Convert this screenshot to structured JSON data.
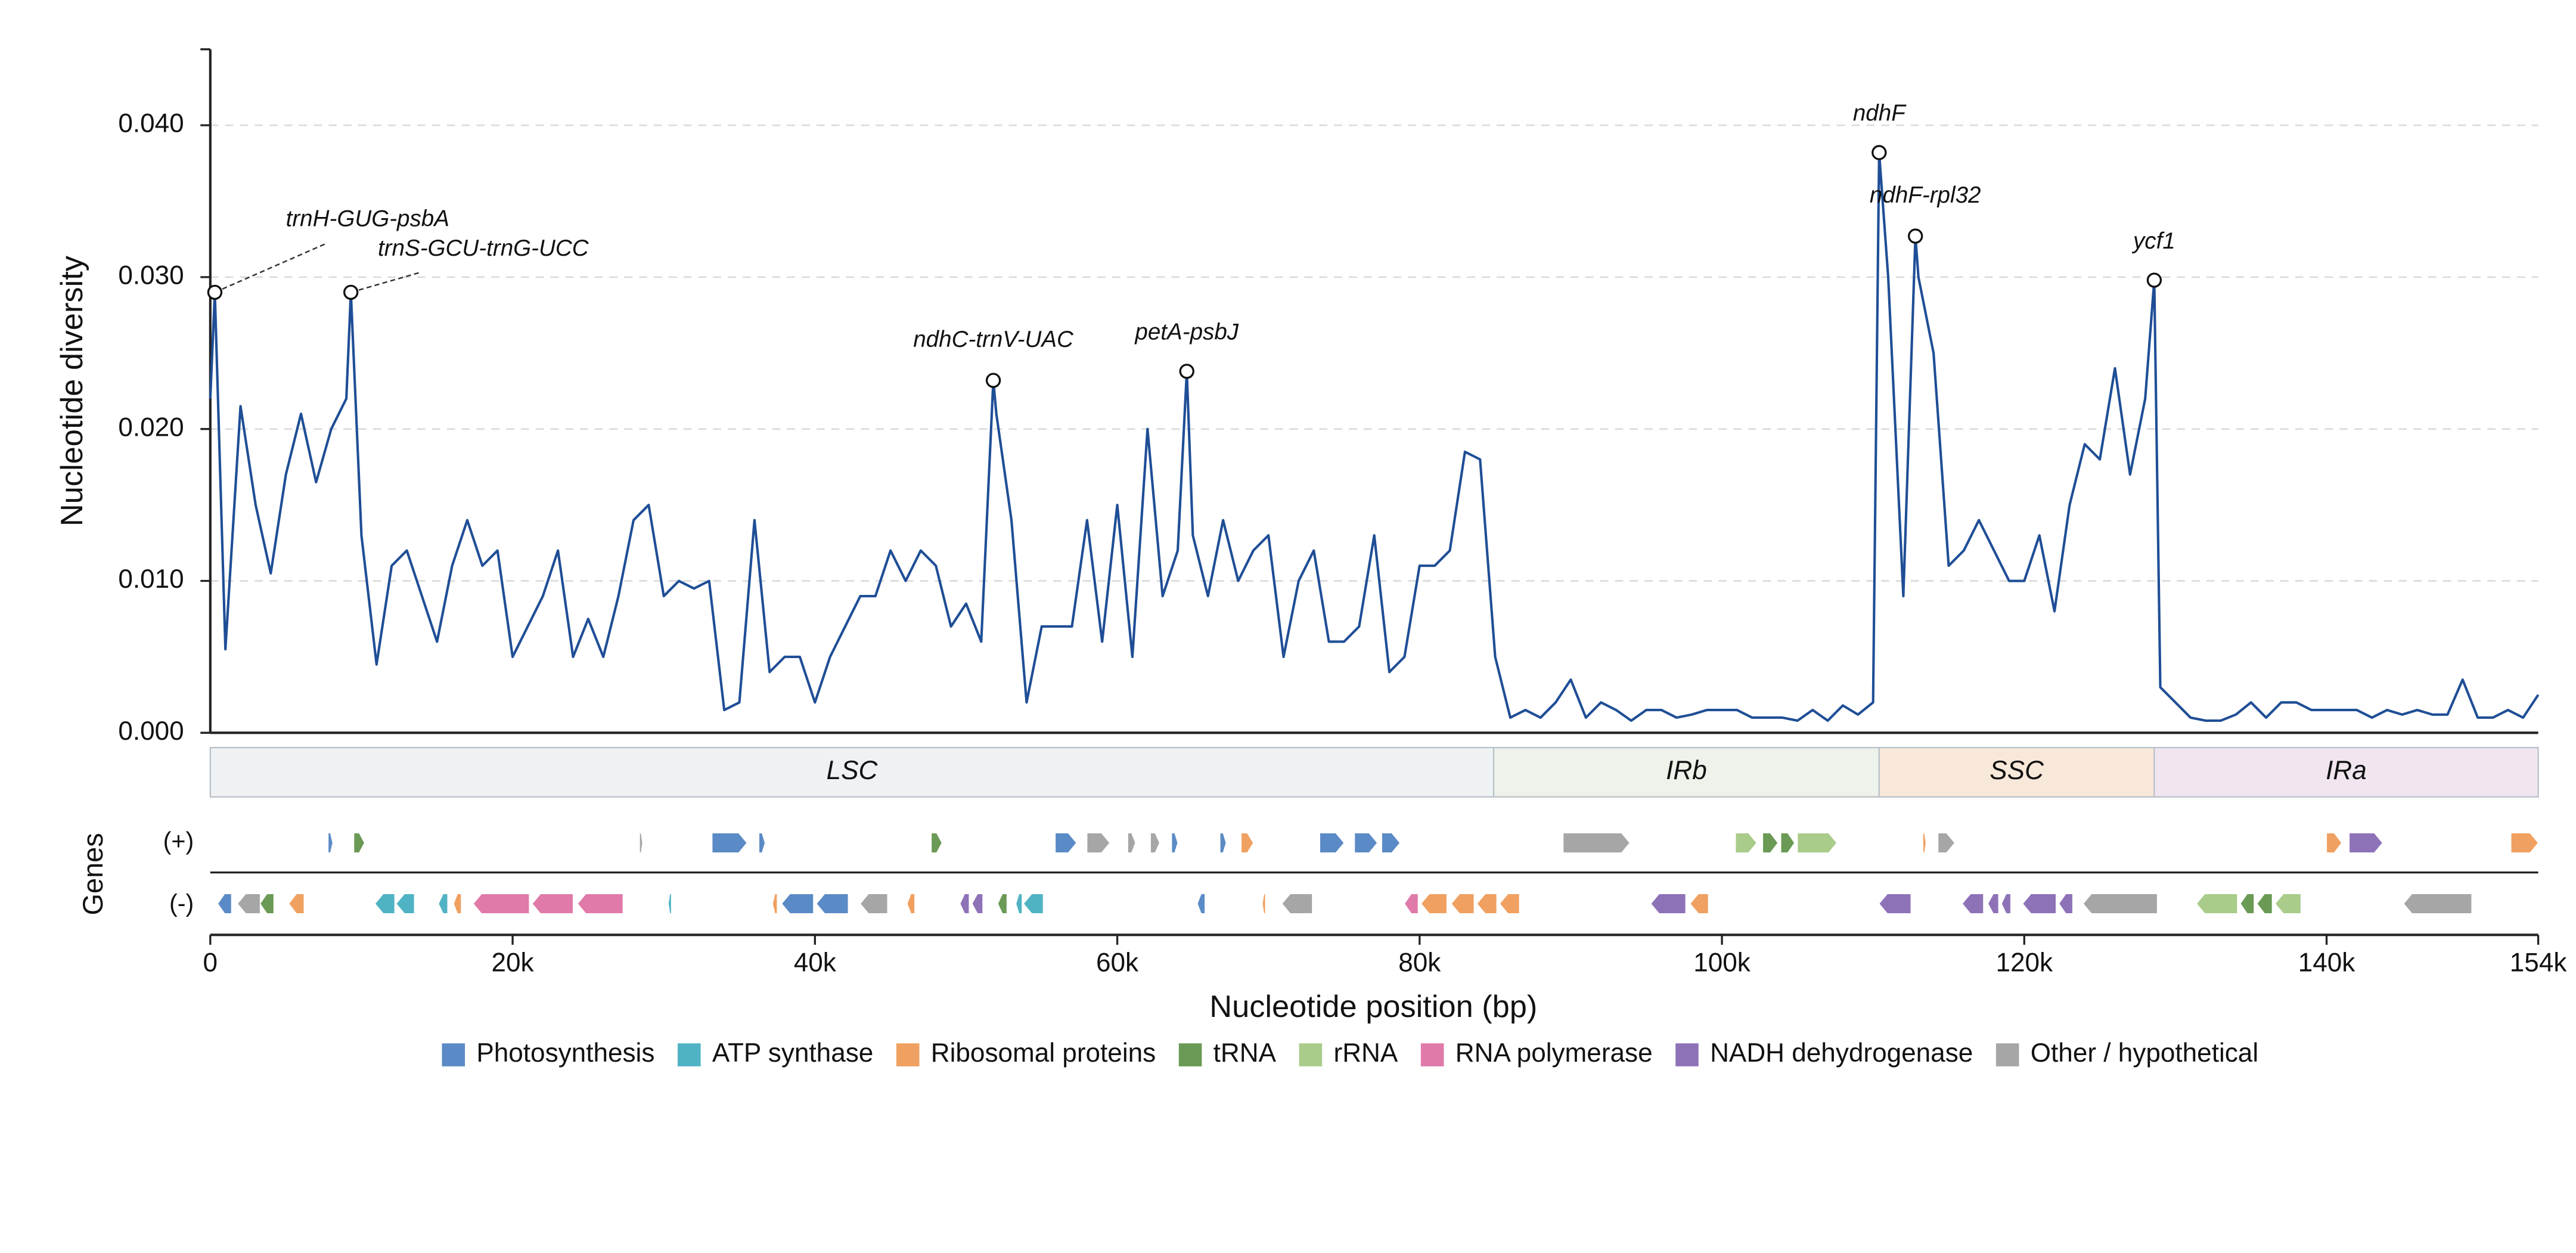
{
  "chart_data": {
    "type": "line",
    "ylabel": "Nucleotide diversity",
    "xlabel": "Nucleotide position (bp)",
    "tracks_label": "Genes",
    "strand_labels": [
      "(+)",
      "(-)"
    ],
    "xlim": [
      0,
      154000
    ],
    "ylim": [
      0,
      0.045
    ],
    "xticks": [
      0,
      {
        "value": 20000,
        "label": "20k"
      },
      {
        "value": 40000,
        "label": "40k"
      },
      {
        "value": 60000,
        "label": "60k"
      },
      {
        "value": 80000,
        "label": "80k"
      },
      {
        "value": 100000,
        "label": "100k"
      },
      {
        "value": 120000,
        "label": "120k"
      },
      {
        "value": 140000,
        "label": "140k"
      },
      {
        "value": 154000,
        "label": "154k"
      }
    ],
    "yticks": [
      {
        "value": 0,
        "label": "0.000"
      },
      {
        "value": 0.01,
        "label": "0.010"
      },
      {
        "value": 0.02,
        "label": "0.020"
      },
      {
        "value": 0.03,
        "label": "0.030"
      },
      {
        "value": 0.04,
        "label": "0.040"
      }
    ],
    "grid": true,
    "series": [
      {
        "name": "Nucleotide diversity",
        "color": "#1f4e96",
        "x": [
          0,
          300,
          1000,
          2000,
          3000,
          4000,
          5000,
          6000,
          7000,
          8000,
          9000,
          9300,
          10000,
          11000,
          12000,
          13000,
          14000,
          15000,
          16000,
          17000,
          18000,
          19000,
          20000,
          21000,
          22000,
          23000,
          24000,
          25000,
          26000,
          27000,
          28000,
          29000,
          30000,
          31000,
          32000,
          33000,
          34000,
          35000,
          36000,
          37000,
          38000,
          39000,
          40000,
          41000,
          42000,
          43000,
          44000,
          45000,
          46000,
          47000,
          48000,
          49000,
          50000,
          51000,
          51800,
          52000,
          53000,
          54000,
          55000,
          56000,
          57000,
          58000,
          59000,
          60000,
          61000,
          62000,
          63000,
          64000,
          64600,
          65000,
          66000,
          67000,
          68000,
          69000,
          70000,
          71000,
          72000,
          73000,
          74000,
          75000,
          76000,
          77000,
          78000,
          79000,
          80000,
          81000,
          82000,
          83000,
          84000,
          85000,
          86000,
          87000,
          88000,
          89000,
          90000,
          91000,
          92000,
          93000,
          94000,
          95000,
          96000,
          97000,
          98000,
          99000,
          100000,
          101000,
          102000,
          103000,
          104000,
          105000,
          106000,
          107000,
          108000,
          109000,
          110000,
          110400,
          111000,
          112000,
          112800,
          113000,
          114000,
          115000,
          116000,
          117000,
          118000,
          119000,
          120000,
          121000,
          122000,
          123000,
          124000,
          125000,
          126000,
          127000,
          128000,
          128600,
          129000,
          130000,
          131000,
          132000,
          133000,
          134000,
          135000,
          136000,
          137000,
          138000,
          139000,
          140000,
          141000,
          142000,
          143000,
          144000,
          145000,
          146000,
          147000,
          148000,
          149000,
          150000,
          151000,
          152000,
          153000,
          154000
        ],
        "values": [
          0.022,
          0.029,
          0.0055,
          0.0215,
          0.015,
          0.0105,
          0.017,
          0.021,
          0.0165,
          0.02,
          0.022,
          0.029,
          0.013,
          0.0045,
          0.011,
          0.012,
          0.009,
          0.006,
          0.011,
          0.014,
          0.011,
          0.012,
          0.005,
          0.007,
          0.009,
          0.012,
          0.005,
          0.0075,
          0.005,
          0.009,
          0.014,
          0.015,
          0.009,
          0.01,
          0.0095,
          0.01,
          0.0015,
          0.002,
          0.014,
          0.004,
          0.005,
          0.005,
          0.002,
          0.005,
          0.007,
          0.009,
          0.009,
          0.012,
          0.01,
          0.012,
          0.011,
          0.007,
          0.0085,
          0.006,
          0.0232,
          0.021,
          0.014,
          0.002,
          0.007,
          0.007,
          0.007,
          0.014,
          0.006,
          0.015,
          0.005,
          0.02,
          0.009,
          0.012,
          0.0238,
          0.013,
          0.009,
          0.014,
          0.01,
          0.012,
          0.013,
          0.005,
          0.01,
          0.012,
          0.006,
          0.006,
          0.007,
          0.013,
          0.004,
          0.005,
          0.011,
          0.011,
          0.012,
          0.0185,
          0.018,
          0.005,
          0.001,
          0.0015,
          0.001,
          0.002,
          0.0035,
          0.001,
          0.002,
          0.0015,
          0.0008,
          0.0015,
          0.0015,
          0.001,
          0.0012,
          0.0015,
          0.0015,
          0.0015,
          0.001,
          0.001,
          0.001,
          0.0008,
          0.0015,
          0.0008,
          0.0018,
          0.0012,
          0.002,
          0.0382,
          0.03,
          0.009,
          0.0327,
          0.03,
          0.025,
          0.011,
          0.012,
          0.014,
          0.012,
          0.01,
          0.01,
          0.013,
          0.008,
          0.015,
          0.019,
          0.018,
          0.024,
          0.017,
          0.022,
          0.0298,
          0.003,
          0.002,
          0.001,
          0.0008,
          0.0008,
          0.0012,
          0.002,
          0.001,
          0.002,
          0.002,
          0.0015,
          0.0015,
          0.0015,
          0.0015,
          0.001,
          0.0015,
          0.0012,
          0.0015,
          0.0012,
          0.0012,
          0.0035,
          0.001,
          0.001,
          0.0015,
          0.001,
          0.0025
        ]
      }
    ],
    "annotations": [
      {
        "text": "trnH-GUG-psbA",
        "x": 300,
        "y": 0.029
      },
      {
        "text": "trnS-GCU-trnG-UCC",
        "x": 9300,
        "y": 0.029
      },
      {
        "text": "ndhC-trnV-UAC",
        "x": 51800,
        "y": 0.0232
      },
      {
        "text": "petA-psbJ",
        "x": 64600,
        "y": 0.0238
      },
      {
        "text": "ndhF",
        "x": 110400,
        "y": 0.0382
      },
      {
        "text": "ndhF-rpl32",
        "x": 112800,
        "y": 0.0327
      },
      {
        "text": "ycf1",
        "x": 128600,
        "y": 0.0298
      }
    ],
    "regions": [
      {
        "name": "LSC",
        "start": 0,
        "end": 84900,
        "color": "#eef2f5"
      },
      {
        "name": "IRb",
        "start": 84900,
        "end": 110400,
        "color": "#edf3ea"
      },
      {
        "name": "SSC",
        "start": 110400,
        "end": 128600,
        "color": "#f8e8da"
      },
      {
        "name": "IRa",
        "start": 128600,
        "end": 154000,
        "color": "#f1e6f0"
      }
    ],
    "categories": [
      {
        "name": "Photosynthesis",
        "color": "#5b8bc6"
      },
      {
        "name": "ATP synthase",
        "color": "#4fb3c4"
      },
      {
        "name": "Ribosomal proteins",
        "color": "#f0a060"
      },
      {
        "name": "tRNA",
        "color": "#6a9a55"
      },
      {
        "name": "rRNA",
        "color": "#a9cc8a"
      },
      {
        "name": "RNA polymerase",
        "color": "#e07aa8"
      },
      {
        "name": "NADH dehydrogenase",
        "color": "#8e72b8"
      },
      {
        "name": "Other / hypothetical",
        "color": "#a6a6a6"
      }
    ],
    "genes": [
      {
        "strand": "+",
        "start": 7800,
        "end": 8100,
        "category": "Photosynthesis"
      },
      {
        "strand": "+",
        "start": 9500,
        "end": 10200,
        "category": "tRNA"
      },
      {
        "strand": "+",
        "start": 28400,
        "end": 28600,
        "category": "Other / hypothetical"
      },
      {
        "strand": "+",
        "start": 33200,
        "end": 35500,
        "category": "Photosynthesis"
      },
      {
        "strand": "+",
        "start": 36300,
        "end": 36700,
        "category": "Photosynthesis"
      },
      {
        "strand": "+",
        "start": 47700,
        "end": 48400,
        "category": "tRNA"
      },
      {
        "strand": "+",
        "start": 55900,
        "end": 57300,
        "category": "Photosynthesis"
      },
      {
        "strand": "+",
        "start": 58000,
        "end": 59500,
        "category": "Other / hypothetical"
      },
      {
        "strand": "+",
        "start": 60700,
        "end": 61200,
        "category": "Other / hypothetical"
      },
      {
        "strand": "+",
        "start": 62200,
        "end": 62800,
        "category": "Other / hypothetical"
      },
      {
        "strand": "+",
        "start": 63600,
        "end": 64000,
        "category": "Photosynthesis"
      },
      {
        "strand": "+",
        "start": 66800,
        "end": 67200,
        "category": "Photosynthesis"
      },
      {
        "strand": "+",
        "start": 68200,
        "end": 69000,
        "category": "Ribosomal proteins"
      },
      {
        "strand": "+",
        "start": 73400,
        "end": 75000,
        "category": "Photosynthesis"
      },
      {
        "strand": "+",
        "start": 75700,
        "end": 77200,
        "category": "Photosynthesis"
      },
      {
        "strand": "+",
        "start": 77500,
        "end": 78700,
        "category": "Photosynthesis"
      },
      {
        "strand": "+",
        "start": 89500,
        "end": 93900,
        "category": "Other / hypothetical"
      },
      {
        "strand": "+",
        "start": 100900,
        "end": 102300,
        "category": "rRNA"
      },
      {
        "strand": "+",
        "start": 102700,
        "end": 103700,
        "category": "tRNA"
      },
      {
        "strand": "+",
        "start": 103900,
        "end": 104800,
        "category": "tRNA"
      },
      {
        "strand": "+",
        "start": 105000,
        "end": 107600,
        "category": "rRNA"
      },
      {
        "strand": "+",
        "start": 113300,
        "end": 113500,
        "category": "Ribosomal proteins"
      },
      {
        "strand": "+",
        "start": 114300,
        "end": 115400,
        "category": "Other / hypothetical"
      },
      {
        "strand": "+",
        "start": 140000,
        "end": 141000,
        "category": "Ribosomal proteins"
      },
      {
        "strand": "+",
        "start": 141500,
        "end": 143700,
        "category": "NADH dehydrogenase"
      },
      {
        "strand": "+",
        "start": 152200,
        "end": 154000,
        "category": "Ribosomal proteins"
      },
      {
        "strand": "-",
        "start": 500,
        "end": 1400,
        "category": "Photosynthesis"
      },
      {
        "strand": "-",
        "start": 1800,
        "end": 3300,
        "category": "Other / hypothetical"
      },
      {
        "strand": "-",
        "start": 3300,
        "end": 4200,
        "category": "tRNA"
      },
      {
        "strand": "-",
        "start": 5200,
        "end": 6200,
        "category": "Ribosomal proteins"
      },
      {
        "strand": "-",
        "start": 10900,
        "end": 12200,
        "category": "ATP synthase"
      },
      {
        "strand": "-",
        "start": 12300,
        "end": 13500,
        "category": "ATP synthase"
      },
      {
        "strand": "-",
        "start": 15100,
        "end": 15700,
        "category": "ATP synthase"
      },
      {
        "strand": "-",
        "start": 16100,
        "end": 16600,
        "category": "Ribosomal proteins"
      },
      {
        "strand": "-",
        "start": 17400,
        "end": 21100,
        "category": "RNA polymerase"
      },
      {
        "strand": "-",
        "start": 21300,
        "end": 24000,
        "category": "RNA polymerase"
      },
      {
        "strand": "-",
        "start": 24300,
        "end": 27300,
        "category": "RNA polymerase"
      },
      {
        "strand": "-",
        "start": 30300,
        "end": 30500,
        "category": "ATP synthase"
      },
      {
        "strand": "-",
        "start": 37200,
        "end": 37500,
        "category": "Ribosomal proteins"
      },
      {
        "strand": "-",
        "start": 37800,
        "end": 39900,
        "category": "Photosynthesis"
      },
      {
        "strand": "-",
        "start": 40100,
        "end": 42200,
        "category": "Photosynthesis"
      },
      {
        "strand": "-",
        "start": 43000,
        "end": 44800,
        "category": "Other / hypothetical"
      },
      {
        "strand": "-",
        "start": 46100,
        "end": 46600,
        "category": "Ribosomal proteins"
      },
      {
        "strand": "-",
        "start": 49600,
        "end": 50200,
        "category": "NADH dehydrogenase"
      },
      {
        "strand": "-",
        "start": 50400,
        "end": 51100,
        "category": "NADH dehydrogenase"
      },
      {
        "strand": "-",
        "start": 52100,
        "end": 52700,
        "category": "tRNA"
      },
      {
        "strand": "-",
        "start": 53300,
        "end": 53700,
        "category": "ATP synthase"
      },
      {
        "strand": "-",
        "start": 53800,
        "end": 55100,
        "category": "ATP synthase"
      },
      {
        "strand": "-",
        "start": 65300,
        "end": 65800,
        "category": "Photosynthesis"
      },
      {
        "strand": "-",
        "start": 69600,
        "end": 69800,
        "category": "Ribosomal proteins"
      },
      {
        "strand": "-",
        "start": 70900,
        "end": 72900,
        "category": "Other / hypothetical"
      },
      {
        "strand": "-",
        "start": 79000,
        "end": 79900,
        "category": "RNA polymerase"
      },
      {
        "strand": "-",
        "start": 80100,
        "end": 81800,
        "category": "Ribosomal proteins"
      },
      {
        "strand": "-",
        "start": 82100,
        "end": 83600,
        "category": "Ribosomal proteins"
      },
      {
        "strand": "-",
        "start": 83800,
        "end": 85100,
        "category": "Ribosomal proteins"
      },
      {
        "strand": "-",
        "start": 85300,
        "end": 86600,
        "category": "Ribosomal proteins"
      },
      {
        "strand": "-",
        "start": 95300,
        "end": 97600,
        "category": "NADH dehydrogenase"
      },
      {
        "strand": "-",
        "start": 97900,
        "end": 99100,
        "category": "Ribosomal proteins"
      },
      {
        "strand": "-",
        "start": 110400,
        "end": 112500,
        "category": "NADH dehydrogenase"
      },
      {
        "strand": "-",
        "start": 115900,
        "end": 117300,
        "category": "NADH dehydrogenase"
      },
      {
        "strand": "-",
        "start": 117600,
        "end": 118300,
        "category": "NADH dehydrogenase"
      },
      {
        "strand": "-",
        "start": 118500,
        "end": 119100,
        "category": "NADH dehydrogenase"
      },
      {
        "strand": "-",
        "start": 119900,
        "end": 122100,
        "category": "NADH dehydrogenase"
      },
      {
        "strand": "-",
        "start": 122300,
        "end": 123200,
        "category": "NADH dehydrogenase"
      },
      {
        "strand": "-",
        "start": 123900,
        "end": 128800,
        "category": "Other / hypothetical"
      },
      {
        "strand": "-",
        "start": 131400,
        "end": 134100,
        "category": "rRNA"
      },
      {
        "strand": "-",
        "start": 134300,
        "end": 135200,
        "category": "tRNA"
      },
      {
        "strand": "-",
        "start": 135400,
        "end": 136400,
        "category": "tRNA"
      },
      {
        "strand": "-",
        "start": 136600,
        "end": 138300,
        "category": "rRNA"
      },
      {
        "strand": "-",
        "start": 145100,
        "end": 149600,
        "category": "Other / hypothetical"
      }
    ]
  }
}
